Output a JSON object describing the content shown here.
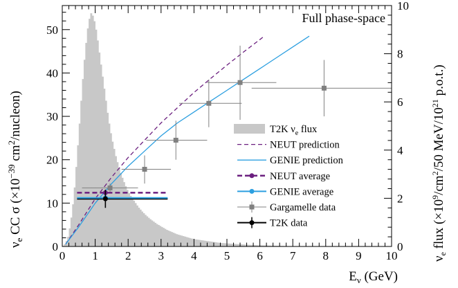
{
  "chart_data": {
    "type": "line",
    "annotation": "Full phase-space",
    "xlabel": {
      "main": "E",
      "sub": "ν",
      "rest": " (GeV)"
    },
    "ylabel_left": {
      "p1": "ν",
      "p1_sub": "e",
      "p2": " CC σ (×10",
      "p2_sup": "−39",
      "p3": " cm",
      "p3_sup": "2",
      "p4": "/nucleon)"
    },
    "ylabel_right": {
      "p1": "ν",
      "p1_sub": "e",
      "p2": " flux (×10",
      "p2_sup": "9",
      "p3": "/cm",
      "p3_sup": "2",
      "p4": "/50 MeV/10",
      "p4_sup": "21",
      "p5": " p.o.t.)"
    },
    "xlim": [
      0,
      10
    ],
    "ylim_left": [
      0,
      55.55
    ],
    "ylim_right": [
      0,
      10
    ],
    "x_ticks": [
      0,
      1,
      2,
      3,
      4,
      5,
      6,
      7,
      8,
      9,
      10
    ],
    "x_tick_labels": [
      "0",
      "1",
      "2",
      "3",
      "4",
      "5",
      "6",
      "7",
      "8",
      "9",
      "10"
    ],
    "y_ticks_left": [
      0,
      10,
      20,
      30,
      40,
      50
    ],
    "y_tick_labels_left": [
      "0",
      "10",
      "20",
      "30",
      "40",
      "50"
    ],
    "y_ticks_right": [
      0,
      2,
      4,
      6,
      8,
      10
    ],
    "y_tick_labels_right": [
      "0",
      "2",
      "4",
      "6",
      "8",
      "10"
    ],
    "legend_position": "bottom-right",
    "colors": {
      "flux": "#c8c8c8",
      "neut": "#6b1f7f",
      "genie": "#2c9fe0",
      "gargamelle": "#808080",
      "t2k": "#000000"
    },
    "flux": {
      "name": "T2K ν_e flux",
      "bin_width": 0.05,
      "values": [
        0.03,
        0.1,
        0.22,
        0.4,
        0.75,
        1.2,
        1.75,
        2.45,
        3.3,
        4.2,
        5.1,
        6.05,
        6.95,
        7.75,
        8.45,
        9.05,
        9.45,
        9.68,
        9.58,
        9.35,
        9.0,
        8.55,
        8.05,
        7.55,
        7.05,
        6.55,
        6.05,
        5.55,
        5.1,
        4.7,
        4.35,
        4.05,
        3.75,
        3.5,
        3.25,
        3.05,
        2.85,
        2.67,
        2.5,
        2.35,
        2.22,
        2.1,
        2.0,
        1.9,
        1.8,
        1.7,
        1.61,
        1.53,
        1.45,
        1.38,
        1.31,
        1.25,
        1.19,
        1.13,
        1.08,
        1.03,
        0.98,
        0.93,
        0.89,
        0.85,
        0.81,
        0.77,
        0.73,
        0.69,
        0.66,
        0.63,
        0.6,
        0.57,
        0.54,
        0.51,
        0.49,
        0.47,
        0.45,
        0.43,
        0.41,
        0.39,
        0.37,
        0.35,
        0.33,
        0.31,
        0.3,
        0.29,
        0.28,
        0.27,
        0.26,
        0.25,
        0.24,
        0.23,
        0.22,
        0.21,
        0.2,
        0.19,
        0.18,
        0.17,
        0.16,
        0.15,
        0.145,
        0.14,
        0.135,
        0.13,
        0.125,
        0.12,
        0.115,
        0.11,
        0.105,
        0.1,
        0.096,
        0.092,
        0.088,
        0.084,
        0.08,
        0.076,
        0.072,
        0.068,
        0.065,
        0.062,
        0.059,
        0.056,
        0.053,
        0.05,
        0.048,
        0.046,
        0.044,
        0.042,
        0.04,
        0.038,
        0.036,
        0.034,
        0.032,
        0.03,
        0.028,
        0.026,
        0.024,
        0.022,
        0.02,
        0.018,
        0.016,
        0.015,
        0.014,
        0.013,
        0.012,
        0.011,
        0.01,
        0.009,
        0.008,
        0.007,
        0.006,
        0.005,
        0.004,
        0.003
      ]
    },
    "series": [
      {
        "name": "NEUT prediction",
        "x": [
          0.1,
          0.5,
          1.0,
          1.5,
          2.0,
          2.5,
          3.0,
          3.5,
          4.0,
          4.5,
          5.0,
          5.5,
          6.0,
          6.1
        ],
        "values": [
          0.5,
          5.0,
          11.0,
          16.0,
          20.5,
          24.5,
          28.5,
          32.0,
          35.5,
          38.7,
          41.8,
          44.8,
          47.7,
          48.3
        ]
      },
      {
        "name": "GENIE prediction",
        "x": [
          0.1,
          0.5,
          1.0,
          1.5,
          2.0,
          2.5,
          3.0,
          3.5,
          4.0,
          4.5,
          5.0,
          5.5,
          6.0,
          6.5,
          7.0,
          7.5
        ],
        "values": [
          0.5,
          4.5,
          10.0,
          14.5,
          18.5,
          22.0,
          25.5,
          28.5,
          31.0,
          33.5,
          36.0,
          38.5,
          41.0,
          43.5,
          46.0,
          48.5
        ]
      }
    ],
    "neut_average": {
      "name": "NEUT average",
      "x": 1.31,
      "y": 12.4,
      "xerr": [
        0.45,
        3.2
      ]
    },
    "genie_average": {
      "name": "GENIE average",
      "x": 1.31,
      "y": 11.2,
      "xerr": [
        0.45,
        3.2
      ]
    },
    "t2k_data": {
      "name": "T2K data",
      "x": 1.31,
      "y": 11.0,
      "xerr": [
        0.45,
        3.2
      ],
      "yerr": [
        8.9,
        13.1
      ]
    },
    "gargamelle": {
      "name": "Gargamelle data",
      "points": [
        {
          "x": 1.45,
          "y": 13.5,
          "xerr": [
            0.6,
            2.3
          ],
          "yerr": [
            12.5,
            14.5
          ]
        },
        {
          "x": 2.5,
          "y": 17.8,
          "xerr": [
            1.8,
            3.3
          ],
          "yerr": [
            14.5,
            21.0
          ]
        },
        {
          "x": 3.45,
          "y": 24.5,
          "xerr": [
            2.55,
            4.4
          ],
          "yerr": [
            20.0,
            29.0
          ]
        },
        {
          "x": 4.45,
          "y": 33.0,
          "xerr": [
            3.55,
            5.45
          ],
          "yerr": [
            27.5,
            38.5
          ]
        },
        {
          "x": 5.4,
          "y": 37.8,
          "xerr": [
            4.4,
            6.5
          ],
          "yerr": [
            29.2,
            46.3
          ]
        },
        {
          "x": 7.95,
          "y": 36.5,
          "xerr": [
            5.75,
            10.0
          ],
          "yerr": [
            30.0,
            43.0
          ]
        }
      ]
    },
    "legend": [
      "T2K ν_e flux",
      "NEUT prediction",
      "GENIE prediction",
      "NEUT average",
      "GENIE average",
      "Gargamelle data",
      "T2K data"
    ]
  }
}
